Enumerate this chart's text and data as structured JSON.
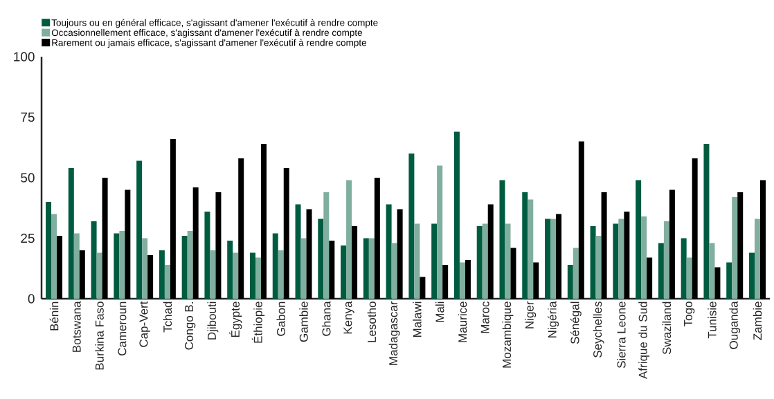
{
  "chart_data": {
    "type": "bar",
    "categories": [
      "Bénin",
      "Botswana",
      "Burkina Faso",
      "Cameroun",
      "Cap-Vert",
      "Tchad",
      "Congo B.",
      "Djibouti",
      "Égypte",
      "Éthiopie",
      "Gabon",
      "Gambie",
      "Ghana",
      "Kenya",
      "Lesotho",
      "Madagascar",
      "Malawi",
      "Mali",
      "Maurice",
      "Maroc",
      "Mozambique",
      "Niger",
      "Nigéria",
      "Sénégal",
      "Seychelles",
      "Sierra Leone",
      "Afrique du Sud",
      "Swaziland",
      "Togo",
      "Tunisie",
      "Ouganda",
      "Zambie"
    ],
    "series": [
      {
        "name": "Toujours ou en général efficace, s'agissant d'amener l'exécutif à rendre compte",
        "color": "#005c40",
        "values": [
          40,
          54,
          32,
          27,
          57,
          20,
          26,
          36,
          24,
          19,
          27,
          39,
          33,
          22,
          25,
          39,
          60,
          31,
          69,
          30,
          49,
          44,
          33,
          14,
          30,
          31,
          49,
          23,
          25,
          64,
          15,
          19
        ]
      },
      {
        "name": "Occasionnellement efficace, s'agissant d'amener l'exécutif à rendre compte",
        "color": "#80ae9f",
        "values": [
          35,
          27,
          19,
          28,
          25,
          14,
          28,
          20,
          19,
          17,
          20,
          25,
          44,
          49,
          25,
          23,
          31,
          55,
          15,
          31,
          31,
          41,
          33,
          21,
          26,
          33,
          34,
          32,
          17,
          23,
          42,
          33
        ]
      },
      {
        "name": "Rarement ou jamais efficace, s'agissant d'amener l'exécutif à rendre compte",
        "color": "#000000",
        "values": [
          26,
          20,
          50,
          45,
          18,
          66,
          46,
          44,
          58,
          64,
          54,
          37,
          24,
          30,
          50,
          37,
          9,
          14,
          16,
          39,
          21,
          15,
          35,
          65,
          44,
          36,
          17,
          45,
          58,
          13,
          44,
          49
        ]
      }
    ],
    "ylim": [
      0,
      100
    ],
    "yticks": [
      0,
      25,
      50,
      75,
      100
    ],
    "legend": "top left"
  }
}
